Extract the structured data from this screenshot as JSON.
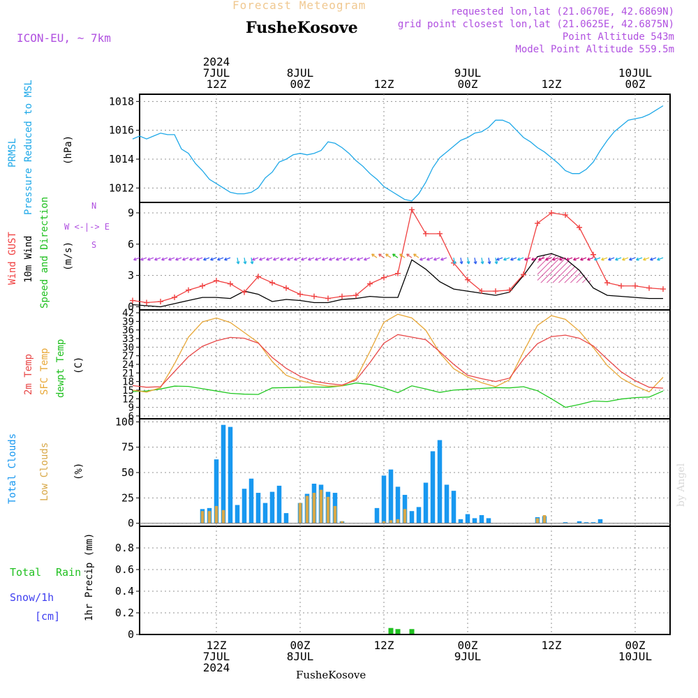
{
  "header": {
    "subtitle": "Forecast Meteogram",
    "location": "FusheKosove",
    "model": "ICON-EU, ~ 7km",
    "requested": "requested lon,lat (21.0670E, 42.6869N)",
    "closest": "grid point closest lon,lat (21.0625E, 42.6875N)",
    "point_altitude": "Point Altitude 543m",
    "model_altitude": "Model Point Altitude 559.5m",
    "footer_location": "FusheKosove",
    "watermark": "by Angel"
  },
  "labels": {
    "pressure": [
      "PRMSL",
      "Pressure Reduced to MSL",
      "(hPa)"
    ],
    "wind": [
      "Wind GUST",
      "10m Wind",
      "Speed and Direction",
      "(m/s)"
    ],
    "compass": [
      "N",
      "W <-|-> E",
      "S"
    ],
    "temp": [
      "2m Temp",
      "SFC Temp",
      "dewpt Temp",
      "(C)"
    ],
    "clouds": [
      "Total Clouds",
      "Low Clouds",
      "(%)"
    ],
    "precip_left": [
      "Total",
      "Rain",
      "Snow/1h",
      "[cm]"
    ],
    "precip_axis": "1hr Precip (mm)"
  },
  "time_axis": {
    "top": [
      [
        "2024",
        "7JUL",
        "12Z"
      ],
      [
        "8JUL",
        "00Z"
      ],
      [
        "12Z"
      ],
      [
        "9JUL",
        "00Z"
      ],
      [
        "12Z"
      ],
      [
        "10JUL",
        "00Z"
      ]
    ],
    "bottom": [
      [
        "12Z",
        "7JUL",
        "2024"
      ],
      [
        "00Z",
        "8JUL"
      ],
      [
        "12Z"
      ],
      [
        "00Z",
        "9JUL"
      ],
      [
        "12Z"
      ],
      [
        "00Z",
        "10JUL"
      ]
    ]
  },
  "colors": {
    "pressure": "#1ea8e8",
    "gust": "#f04040",
    "wind": "#000000",
    "t2m": "#e84848",
    "sfc": "#e8a838",
    "dew": "#20c820",
    "total_cloud": "#1898f0",
    "low_cloud": "#d8a848",
    "rain": "#20c020",
    "snow": "#4040f0",
    "purple": "#b050e0",
    "cyan": "#20b8e0",
    "blue": "#3060f0",
    "magenta": "#c81880"
  },
  "chart_data": [
    {
      "type": "line",
      "name": "pressure",
      "x_unit": "hours from 2024-07-07 00Z",
      "ylim": [
        1011,
        1018.5
      ],
      "yticks": [
        1012,
        1014,
        1016,
        1018
      ],
      "x": [
        0,
        1,
        2,
        3,
        4,
        5,
        6,
        7,
        8,
        9,
        10,
        11,
        12,
        13,
        14,
        15,
        16,
        17,
        18,
        19,
        20,
        21,
        22,
        23,
        24,
        25,
        26,
        27,
        28,
        29,
        30,
        31,
        32,
        33,
        34,
        35,
        36,
        37,
        38,
        39,
        40,
        41,
        42,
        43,
        44,
        45,
        46,
        47,
        48,
        49,
        50,
        51,
        52,
        53,
        54,
        55,
        56,
        57,
        58,
        59,
        60,
        61,
        62,
        63,
        64,
        65,
        66,
        67,
        68,
        69,
        70,
        71,
        72,
        73,
        74,
        75,
        76
      ],
      "y": [
        1015.4,
        1015.6,
        1015.4,
        1015.6,
        1015.8,
        1015.7,
        1015.7,
        1014.7,
        1014.4,
        1013.7,
        1013.2,
        1012.6,
        1012.3,
        1012.0,
        1011.7,
        1011.6,
        1011.6,
        1011.7,
        1012.0,
        1012.7,
        1013.1,
        1013.8,
        1014.0,
        1014.3,
        1014.4,
        1014.3,
        1014.4,
        1014.6,
        1015.2,
        1015.1,
        1014.8,
        1014.4,
        1013.9,
        1013.5,
        1013.0,
        1012.6,
        1012.1,
        1011.8,
        1011.5,
        1011.2,
        1011.1,
        1011.6,
        1012.4,
        1013.4,
        1014.1,
        1014.5,
        1014.9,
        1015.3,
        1015.5,
        1015.8,
        1015.9,
        1016.2,
        1016.7,
        1016.7,
        1016.5,
        1016.0,
        1015.5,
        1015.2,
        1014.8,
        1014.5,
        1014.1,
        1013.7,
        1013.2,
        1013.0,
        1013.0,
        1013.3,
        1013.8,
        1014.6,
        1015.3,
        1015.9,
        1016.3,
        1016.7,
        1016.8,
        1016.9,
        1017.1,
        1017.4,
        1017.7
      ]
    },
    {
      "type": "line",
      "name": "wind",
      "ylim": [
        -0.3,
        10
      ],
      "yticks": [
        0,
        3,
        6,
        9
      ],
      "x": [
        0,
        2,
        4,
        6,
        8,
        10,
        12,
        14,
        16,
        18,
        20,
        22,
        24,
        26,
        28,
        30,
        32,
        34,
        36,
        38,
        40,
        42,
        44,
        46,
        48,
        50,
        52,
        54,
        56,
        58,
        60,
        62,
        64,
        66,
        68,
        70,
        72,
        74,
        76
      ],
      "gust": [
        0.6,
        0.4,
        0.5,
        0.9,
        1.6,
        2.0,
        2.5,
        2.2,
        1.4,
        2.9,
        2.3,
        1.8,
        1.2,
        1.0,
        0.8,
        1.0,
        1.1,
        2.2,
        2.8,
        3.2,
        9.3,
        7.0,
        7.0,
        4.2,
        2.6,
        1.5,
        1.5,
        1.6,
        3.1,
        8.0,
        9.0,
        8.8,
        7.6,
        5.0,
        2.3,
        2.0,
        2.0,
        1.8,
        1.7
      ],
      "speed": [
        0.2,
        0.1,
        0.0,
        0.3,
        0.6,
        0.9,
        0.9,
        0.8,
        1.5,
        1.2,
        0.5,
        0.7,
        0.6,
        0.4,
        0.4,
        0.7,
        0.8,
        1.0,
        0.9,
        0.9,
        4.5,
        3.6,
        2.4,
        1.7,
        1.5,
        1.3,
        1.1,
        1.4,
        3.0,
        4.8,
        5.1,
        4.6,
        3.5,
        1.8,
        1.1,
        1.0,
        0.9,
        0.8,
        0.8
      ]
    },
    {
      "type": "line",
      "name": "temperature",
      "ylim": [
        5,
        43
      ],
      "yticks": [
        6,
        9,
        12,
        15,
        18,
        21,
        24,
        27,
        30,
        33,
        36,
        39,
        42
      ],
      "x": [
        0,
        2,
        4,
        6,
        8,
        10,
        12,
        14,
        16,
        18,
        20,
        22,
        24,
        26,
        28,
        30,
        32,
        34,
        36,
        38,
        40,
        42,
        44,
        46,
        48,
        50,
        52,
        54,
        56,
        58,
        60,
        62,
        64,
        66,
        68,
        70,
        72,
        74,
        76
      ],
      "t2m": [
        16.6,
        16.0,
        16.2,
        21.5,
        26.7,
        30.3,
        32.2,
        33.4,
        33.1,
        31.4,
        26.4,
        22.6,
        19.8,
        18.1,
        17.3,
        16.8,
        18.5,
        24.6,
        31.4,
        34.4,
        33.5,
        32.6,
        28.4,
        24.0,
        20.2,
        19.0,
        18.0,
        19.2,
        25.8,
        31.2,
        33.7,
        34.2,
        33.1,
        30.4,
        25.8,
        21.4,
        18.3,
        16.0,
        15.7
      ],
      "sfc": [
        15.0,
        14.3,
        15.9,
        24.2,
        33.5,
        38.8,
        40.2,
        38.6,
        35.1,
        31.6,
        25.0,
        20.2,
        18.3,
        17.2,
        16.4,
        16.5,
        19.0,
        28.5,
        38.7,
        41.5,
        40.2,
        35.9,
        28.0,
        22.5,
        19.6,
        17.6,
        16.2,
        18.6,
        28.4,
        37.6,
        41.0,
        39.7,
        35.6,
        29.9,
        23.6,
        19.2,
        16.5,
        14.4,
        19.5
      ],
      "dew": [
        14.5,
        14.7,
        15.4,
        16.4,
        16.3,
        15.5,
        14.7,
        13.9,
        13.6,
        13.5,
        15.8,
        15.9,
        16.0,
        16.1,
        16.0,
        16.5,
        17.5,
        17.0,
        15.8,
        14.1,
        16.5,
        15.4,
        14.2,
        15.0,
        15.3,
        15.6,
        15.9,
        15.8,
        16.2,
        14.8,
        12.0,
        9.0,
        10.0,
        11.2,
        11.0,
        11.9,
        12.4,
        12.6,
        14.7
      ]
    },
    {
      "type": "bar",
      "name": "clouds",
      "ylim": [
        -3,
        103
      ],
      "yticks": [
        0,
        25,
        50,
        75,
        100
      ],
      "x": [
        0,
        1,
        2,
        3,
        4,
        5,
        6,
        7,
        8,
        9,
        10,
        11,
        12,
        13,
        14,
        15,
        16,
        17,
        18,
        19,
        20,
        21,
        22,
        23,
        24,
        25,
        26,
        27,
        28,
        29,
        30,
        31,
        32,
        33,
        34,
        35,
        36,
        37,
        38,
        39,
        40,
        41,
        42,
        43,
        44,
        45,
        46,
        47,
        48,
        49,
        50,
        51,
        52,
        53,
        54,
        55,
        56,
        57,
        58,
        59,
        60,
        61,
        62,
        63,
        64,
        65,
        66,
        67,
        68,
        69,
        70,
        71,
        72,
        73,
        74,
        75,
        76
      ],
      "total": [
        0,
        0,
        0,
        0,
        0,
        0,
        0,
        0,
        0,
        0,
        14,
        15,
        63,
        97,
        95,
        18,
        34,
        44,
        30,
        20,
        31,
        37,
        10,
        0,
        20,
        29,
        39,
        38,
        31,
        30,
        2,
        0,
        0,
        0,
        0,
        15,
        47,
        53,
        36,
        28,
        12,
        16,
        40,
        71,
        82,
        38,
        32,
        4,
        9,
        5,
        8,
        5,
        0,
        0,
        0,
        0,
        0,
        0,
        6,
        7,
        0,
        0,
        1,
        0,
        2,
        1,
        1,
        4,
        0,
        0,
        0,
        0,
        0,
        0,
        0,
        0,
        0
      ],
      "low": [
        0,
        0,
        0,
        0,
        0,
        0,
        0,
        0,
        0,
        0,
        12,
        12,
        17,
        13,
        0,
        0,
        0,
        0,
        0,
        0,
        0,
        0,
        0,
        0,
        20,
        27,
        30,
        33,
        26,
        17,
        2,
        0,
        0,
        0,
        0,
        0,
        2,
        3,
        4,
        14,
        0,
        0,
        0,
        0,
        0,
        0,
        0,
        0,
        0,
        0,
        0,
        0,
        0,
        0,
        0,
        0,
        0,
        0,
        5,
        8,
        0,
        0,
        0,
        0,
        0,
        0,
        0,
        0,
        0,
        0,
        0,
        0,
        0,
        0,
        0,
        0,
        0
      ]
    },
    {
      "type": "bar",
      "name": "precipitation",
      "ylim": [
        0,
        1.0
      ],
      "yticks": [
        0,
        0.2,
        0.4,
        0.6,
        0.8
      ],
      "x": [
        37,
        38,
        40
      ],
      "rain": [
        0.06,
        0.05,
        0.05
      ]
    }
  ]
}
